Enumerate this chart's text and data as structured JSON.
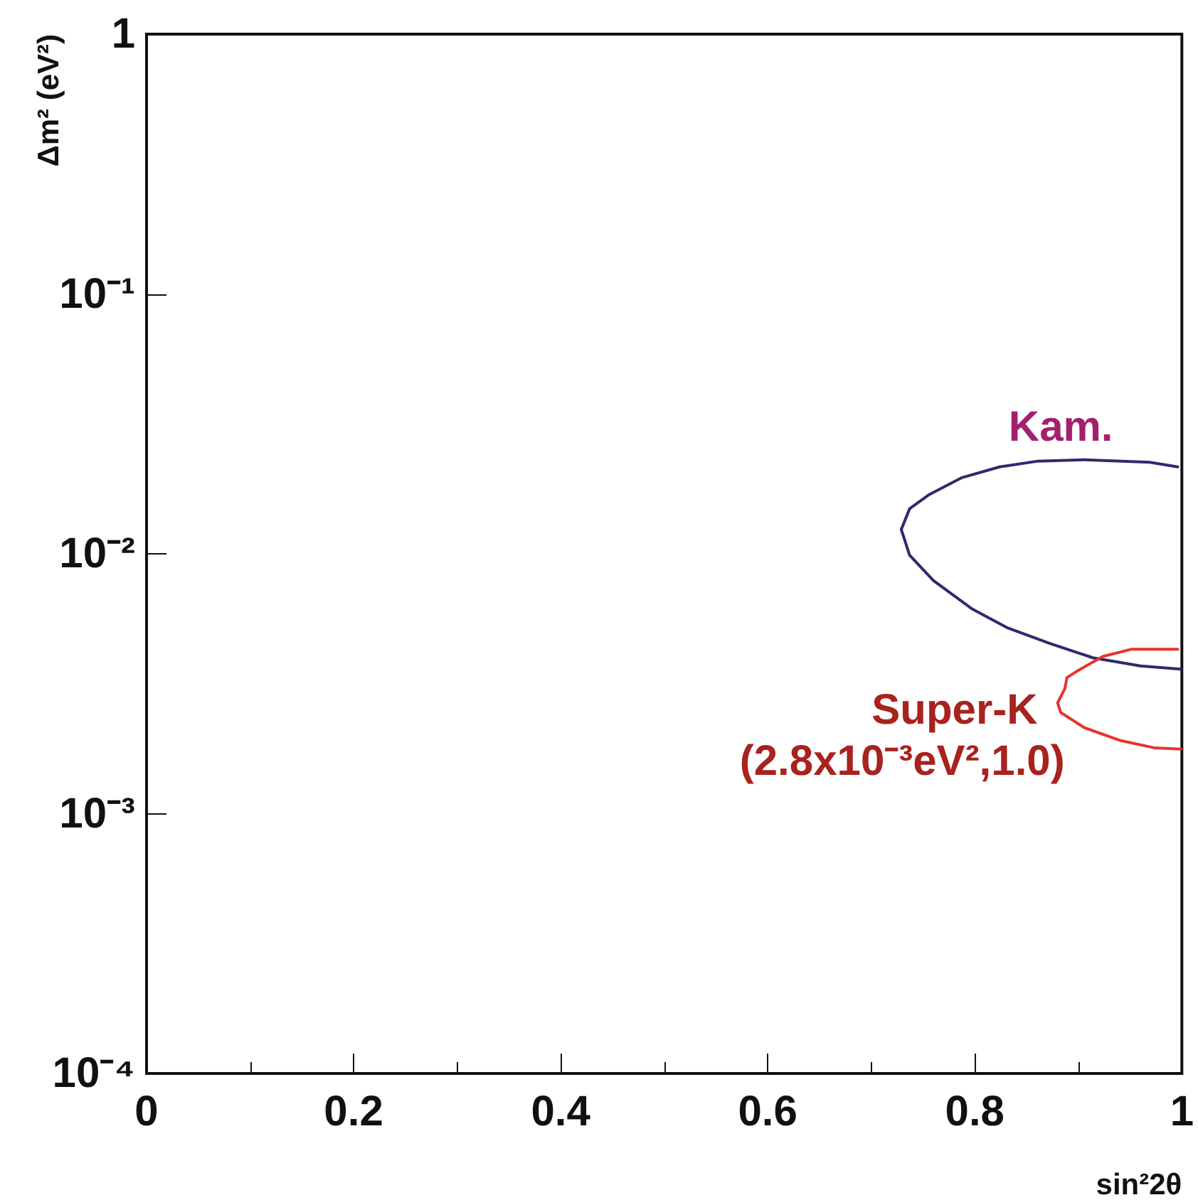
{
  "chart_data": {
    "type": "line",
    "xlabel": "sin²2θ",
    "ylabel": "Δm² (eV²)",
    "log": "y",
    "grid": false,
    "legend": false,
    "marker": "none",
    "line_style": "solid",
    "xlim": [
      0,
      1
    ],
    "xticks": [
      0,
      0.2,
      0.4,
      0.6,
      0.8,
      1
    ],
    "ylim": [
      0.0001,
      1
    ],
    "yticks": [
      {
        "value": 0.0001,
        "label": "10⁻⁴"
      },
      {
        "value": 0.001,
        "label": "10⁻³"
      },
      {
        "value": 0.01,
        "label": "10⁻²"
      },
      {
        "value": 0.1,
        "label": "10⁻¹"
      },
      1
    ],
    "series": [
      {
        "name": "Kam.",
        "color": "#2e2a6e",
        "x": [
          0.996,
          0.969,
          0.906,
          0.86,
          0.824,
          0.787,
          0.756,
          0.737,
          0.729,
          0.737,
          0.76,
          0.797,
          0.832,
          0.873,
          0.914,
          0.96,
          0.999
        ],
        "values": [
          0.0216,
          0.0225,
          0.023,
          0.0227,
          0.0216,
          0.0196,
          0.0169,
          0.0149,
          0.0124,
          0.00988,
          0.00789,
          0.00615,
          0.00518,
          0.00451,
          0.00398,
          0.0037,
          0.0036
        ]
      },
      {
        "name": "Super-K",
        "color": "#e8342c",
        "x": [
          0.996,
          0.951,
          0.924,
          0.9,
          0.889,
          0.887,
          0.88,
          0.883,
          0.906,
          0.941,
          0.974,
          0.999
        ],
        "values": [
          0.00429,
          0.00429,
          0.00403,
          0.00356,
          0.00334,
          0.00303,
          0.00267,
          0.00245,
          0.00214,
          0.00191,
          0.00179,
          0.00177
        ]
      }
    ],
    "annotations": [
      "(2.8x10⁻³eV²,1.0)"
    ]
  }
}
